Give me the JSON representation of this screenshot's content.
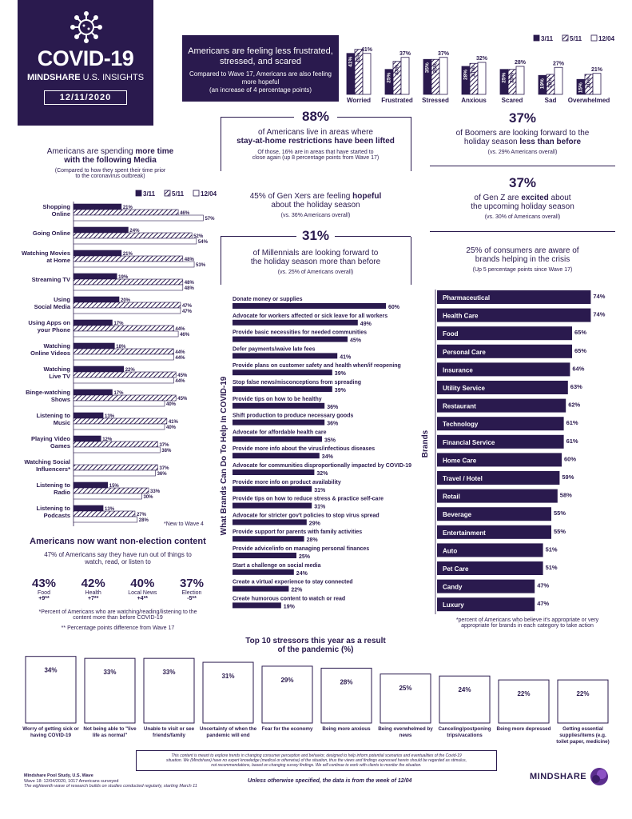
{
  "header": {
    "title": "COVID-19",
    "brand": "MINDSHARE",
    "insights": "U.S. INSIGHTS",
    "date": "12/11/2020"
  },
  "feelings_panel": {
    "headline": "Americans are feeling less frustrated, stressed, and scared",
    "sub": "Compared to Wave 17, Americans are also feeling more hopeful",
    "sub2": "(an increase of 4 percentage points)"
  },
  "legend": {
    "w1": "3/11",
    "w2": "5/11",
    "w3": "12/04"
  },
  "stat88": {
    "pct": "88%",
    "line1": "of Americans live in areas where",
    "line2": "stay-at-home restrictions have been lifted",
    "note1": "Of those, 16% are in areas that have started to",
    "note2": "close again (up 8 percentage points from Wave 17)"
  },
  "stat_boomers": {
    "pct": "37%",
    "line1": "of Boomers are looking forward to the",
    "line2a": "holiday season ",
    "line2b": "less than before",
    "note": "(vs. 29% Americans overall)"
  },
  "stat_genx": {
    "line1a": "45% of Gen Xers are feeling ",
    "line1b": "hopeful",
    "line2": "about the holiday season",
    "note": "(vs. 36% Americans overall)"
  },
  "stat_genz": {
    "pct": "37%",
    "line1a": "of Gen Z are ",
    "line1b": "excited",
    "line1c": " about",
    "line2": "the upcoming holiday season",
    "note": "(vs. 30% of Americans overall)"
  },
  "stat_millennials": {
    "pct": "31%",
    "line1": "of Millennials are looking forward to",
    "line2": "the holiday season more than before",
    "note": "(vs. 25% of Americans overall)"
  },
  "aware": {
    "line1": "25% of consumers are aware of",
    "line2": "brands helping in the crisis",
    "note": "(Up 5 percentage points since Wave 17)"
  },
  "media": {
    "title1a": "Americans are spending ",
    "title1b": "more time",
    "title2": "with the following Media",
    "sub1": "(Compared to how they spent their time prior",
    "sub2": "to the coronavirus outbreak)",
    "footnote": "*New to Wave 4"
  },
  "nonelection": {
    "title": "Americans now want non-election content",
    "sub1": "47% of Americans say they have run out of things to",
    "sub2": "watch, read, or listen to",
    "stats": [
      {
        "pct": "43%",
        "label": "Food",
        "delta": "+9**"
      },
      {
        "pct": "42%",
        "label": "Health",
        "delta": "+7**"
      },
      {
        "pct": "40%",
        "label": "Local News",
        "delta": "+4**"
      },
      {
        "pct": "37%",
        "label": "Election",
        "delta": "-5**"
      }
    ],
    "note1": "*Percent of Americans who are watching/reading/listening to the",
    "note1b": "content more than before COVID-19",
    "note2": "** Percentage points difference from Wave 17"
  },
  "brands_note1": "*percent of Americans who believe it's appropriate or very",
  "brands_note2": "appropriate for brands in each category to take action",
  "stressors_title1": "Top 10 stressors this year as a result",
  "stressors_title2": "of the pandemic (%)",
  "disclaimer1": "This content is meant to explore trends in changing consumer perception and behavior, designed to help inform potential scenarios and eventualities of the Covid-19",
  "disclaimer2": "situation. We (Mindshare) have no expert knowledge (medical or otherwise) of the situation, thus the views and findings expressed herein should be regarded as stimulus,",
  "disclaimer3": "not recommendations, based on changing survey findings. We will continue to work with clients to monitor the situation.",
  "source1": "Mindshare Pool Study, U.S. Wave",
  "source2": "Wave 18: 12/04/2020, 1017 Americans surveyed",
  "source3": "The eighteenth wave of research builds on studies conducted regularly, starting March 11",
  "bottom_note": "Unless otherwise specified, the data is from the week of 12/04",
  "footer_logo": "MINDSHARE",
  "colors": {
    "primary": "#2a1a4e"
  },
  "chart_data": [
    {
      "type": "bar",
      "id": "feelings",
      "categories": [
        "Worried",
        "Frustrated",
        "Stressed",
        "Anxious",
        "Scared",
        "Sad",
        "Overwhelmed"
      ],
      "series": [
        {
          "name": "3/11",
          "values": [
            41,
            25,
            35,
            28,
            25,
            19,
            15
          ]
        },
        {
          "name": "5/11",
          "values": [
            45,
            33,
            35,
            31,
            25,
            20,
            20
          ]
        },
        {
          "name": "12/04",
          "values": [
            41,
            37,
            37,
            32,
            28,
            27,
            21
          ]
        }
      ]
    },
    {
      "type": "bar",
      "id": "media",
      "orientation": "horizontal",
      "categories": [
        "Shopping Online",
        "Going Online",
        "Watching Movies at Home",
        "Streaming TV",
        "Using Social Media",
        "Using Apps on your Phone",
        "Watching Online Videos",
        "Watching Live TV",
        "Binge-watching Shows",
        "Listening to Music",
        "Playing Video Games",
        "Watching Social Influencers*",
        "Listening to Radio",
        "Listening to Podcasts"
      ],
      "series": [
        {
          "name": "3/11",
          "values": [
            21,
            24,
            21,
            19,
            20,
            17,
            18,
            22,
            17,
            13,
            12,
            null,
            15,
            13
          ]
        },
        {
          "name": "5/11",
          "values": [
            46,
            52,
            48,
            48,
            47,
            44,
            44,
            45,
            45,
            41,
            37,
            37,
            33,
            27
          ]
        },
        {
          "name": "12/04",
          "values": [
            57,
            54,
            53,
            48,
            47,
            46,
            44,
            44,
            40,
            40,
            38,
            36,
            30,
            28
          ]
        }
      ]
    },
    {
      "type": "bar",
      "id": "help",
      "orientation": "horizontal",
      "ylabel": "What Brands Can Do To Help In COVID-19",
      "categories": [
        "Donate money or supplies",
        "Advocate for workers affected or sick leave for all workers",
        "Provide basic necessities for needed communities",
        "Defer payments/waive late fees",
        "Provide plans on customer safety and health when/if reopening",
        "Stop false news/misconceptions from spreading",
        "Provide tips on how to be healthy",
        "Shift production to produce necessary goods",
        "Advocate for affordable health care",
        "Provide more info about the virus/infectious diseases",
        "Advocate for communities disproportionally impacted by COVID-19",
        "Provide more info on product availability",
        "Provide tips on how to reduce stress & practice self-care",
        "Advocate for stricter gov't policies to stop virus spread",
        "Provide support for parents with family activities",
        "Provide advice/info on managing personal finances",
        "Start a challenge on social media",
        "Create a virtual experience to stay connected",
        "Create humorous content to watch or read"
      ],
      "values": [
        60,
        49,
        45,
        41,
        39,
        39,
        36,
        36,
        35,
        34,
        32,
        31,
        31,
        29,
        28,
        25,
        24,
        22,
        19
      ]
    },
    {
      "type": "bar",
      "id": "brands",
      "orientation": "horizontal",
      "ylabel": "Brands",
      "categories": [
        "Pharmaceutical",
        "Health Care",
        "Food",
        "Personal Care",
        "Insurance",
        "Utility Service",
        "Restaurant",
        "Technology",
        "Financial Service",
        "Home Care",
        "Travel / Hotel",
        "Retail",
        "Beverage",
        "Entertainment",
        "Auto",
        "Pet Care",
        "Candy",
        "Luxury"
      ],
      "values": [
        74,
        74,
        65,
        65,
        64,
        63,
        62,
        61,
        61,
        60,
        59,
        58,
        55,
        55,
        51,
        51,
        47,
        47
      ]
    },
    {
      "type": "bar",
      "id": "stressors",
      "categories": [
        "Worry of getting sick or having COVID-19",
        "Not being able to \"live life as normal\"",
        "Unable to visit or see friends/family",
        "Uncertainty of when the pandemic will end",
        "Fear for the economy",
        "Being more anxious",
        "Being overwhelmed by news",
        "Canceling/postponing trips/vacations",
        "Being more depressed",
        "Getting essential supplies/items (e.g. toilet paper, medicine)"
      ],
      "values": [
        34,
        33,
        33,
        31,
        29,
        28,
        25,
        24,
        22,
        22
      ]
    }
  ]
}
